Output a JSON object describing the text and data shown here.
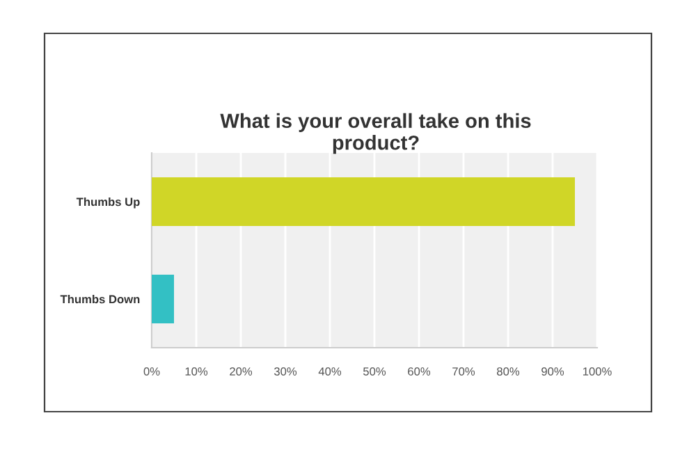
{
  "chart_data": {
    "type": "bar",
    "orientation": "horizontal",
    "title": "What is your overall take on this product?",
    "categories": [
      "Thumbs Up",
      "Thumbs Down"
    ],
    "values": [
      95,
      5
    ],
    "colors": [
      "#d0d627",
      "#33c0c4"
    ],
    "xlim": [
      0,
      100
    ],
    "xticks": [
      {
        "value": 0,
        "label": "0%"
      },
      {
        "value": 10,
        "label": "10%"
      },
      {
        "value": 20,
        "label": "20%"
      },
      {
        "value": 30,
        "label": "30%"
      },
      {
        "value": 40,
        "label": "40%"
      },
      {
        "value": 50,
        "label": "50%"
      },
      {
        "value": 60,
        "label": "60%"
      },
      {
        "value": 70,
        "label": "70%"
      },
      {
        "value": 80,
        "label": "80%"
      },
      {
        "value": 90,
        "label": "90%"
      },
      {
        "value": 100,
        "label": "100%"
      }
    ],
    "grid": "x"
  }
}
